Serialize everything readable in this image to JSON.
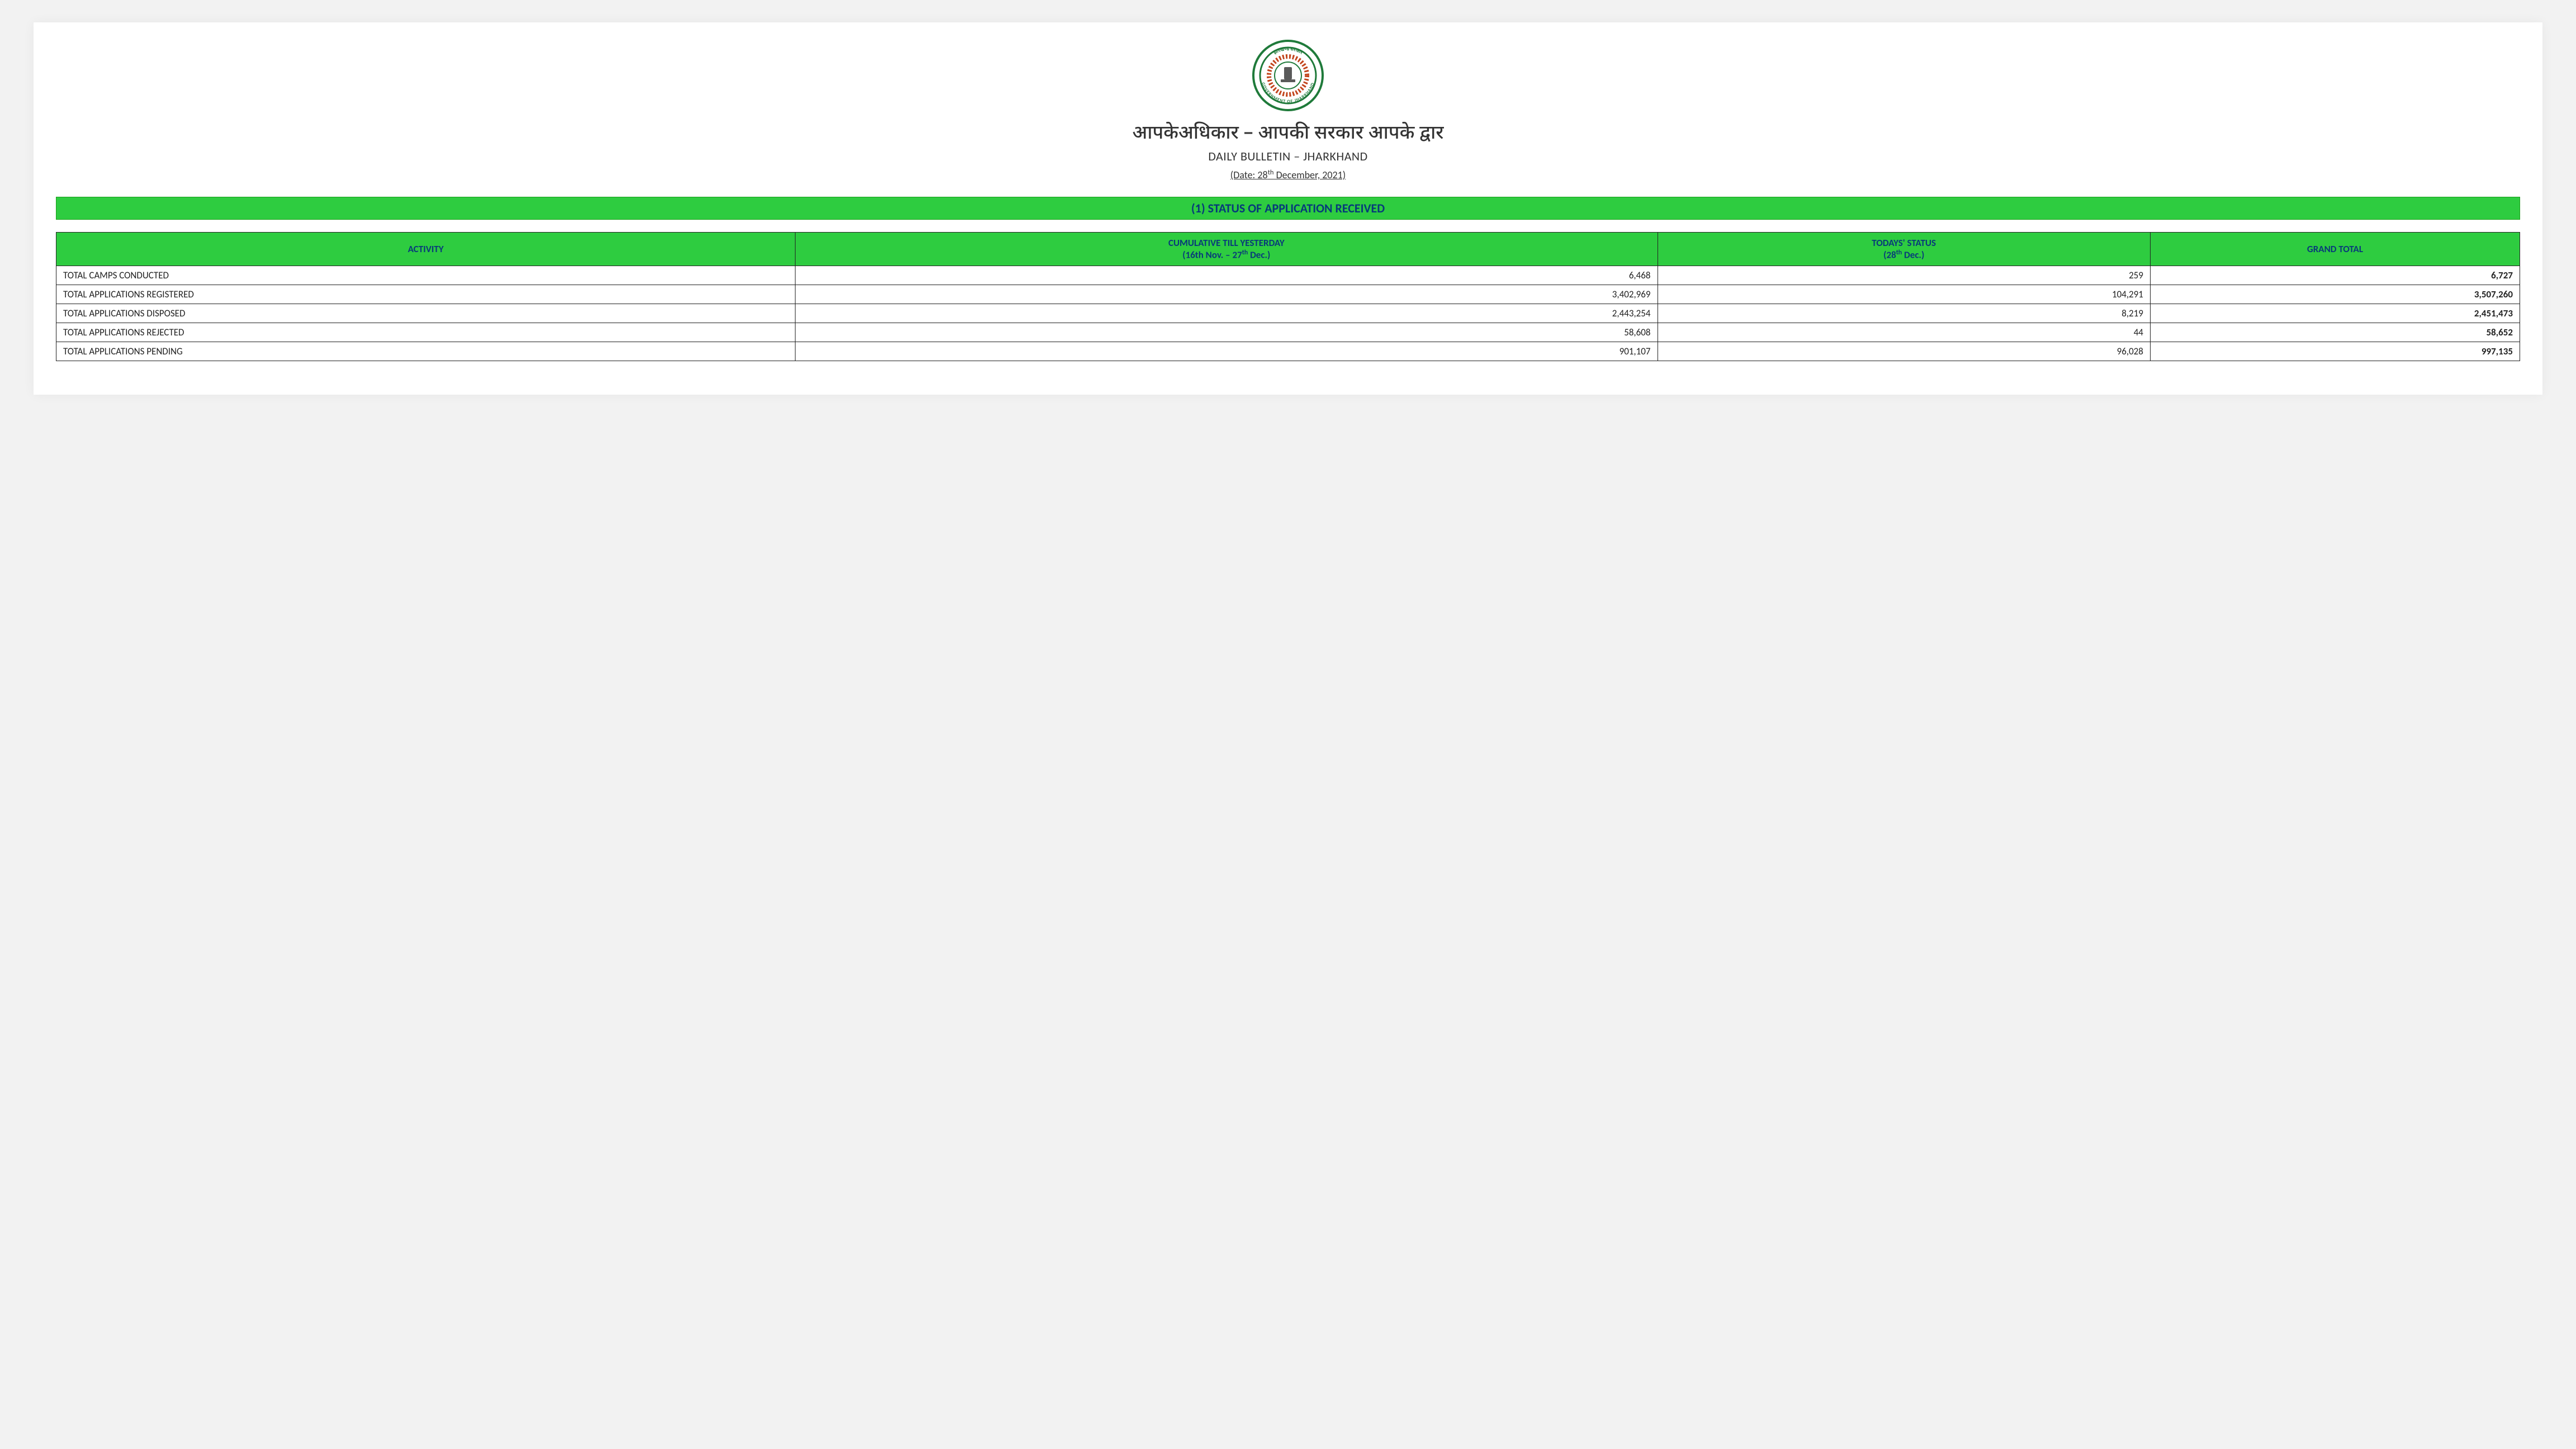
{
  "colors": {
    "section_bar_bg": "#2ecc40",
    "section_bar_text": "#063a7a",
    "table_header_bg": "#2ecc40",
    "table_header_text": "#083a7a",
    "page_bg": "#ffffff",
    "body_bg": "#f2f2f2",
    "border": "#222222",
    "seal_outer": "#1f7a3a",
    "seal_inner": "#c2451d"
  },
  "header": {
    "seal_outer_text": "GOVERNMENT OF JHARKHAND",
    "seal_top_text": "झारखण्ड सरकार",
    "title_hindi": "आपकेअधिकार – आपकी सरकार आपके द्वार",
    "subtitle": "DAILY BULLETIN – JHARKHAND",
    "date_prefix": "(Date: 28",
    "date_super": "th",
    "date_suffix": " December, 2021)"
  },
  "section": {
    "title": "(1) STATUS OF APPLICATION RECEIVED"
  },
  "table": {
    "type": "table",
    "columns": {
      "activity": "ACTIVITY",
      "cumulative_line1": "CUMULATIVE TILL YESTERDAY",
      "cumulative_line2_a": "(16th Nov. – 27",
      "cumulative_line2_sup": "th",
      "cumulative_line2_b": " Dec.)",
      "today_line1": "TODAYS' STATUS",
      "today_line2_a": "(28",
      "today_line2_sup": "th",
      "today_line2_b": " Dec.)",
      "grand": "GRAND TOTAL"
    },
    "col_widths_pct": [
      30,
      35,
      20,
      15
    ],
    "rows": [
      {
        "activity": "TOTAL CAMPS CONDUCTED",
        "cumulative": "6,468",
        "today": "259",
        "grand": "6,727"
      },
      {
        "activity": "TOTAL APPLICATIONS REGISTERED",
        "cumulative": "3,402,969",
        "today": "104,291",
        "grand": "3,507,260"
      },
      {
        "activity": "TOTAL APPLICATIONS DISPOSED",
        "cumulative": "2,443,254",
        "today": "8,219",
        "grand": "2,451,473"
      },
      {
        "activity": "TOTAL APPLICATIONS REJECTED",
        "cumulative": "58,608",
        "today": "44",
        "grand": "58,652"
      },
      {
        "activity": "TOTAL APPLICATIONS PENDING",
        "cumulative": "901,107",
        "today": "96,028",
        "grand": "997,135"
      }
    ]
  }
}
